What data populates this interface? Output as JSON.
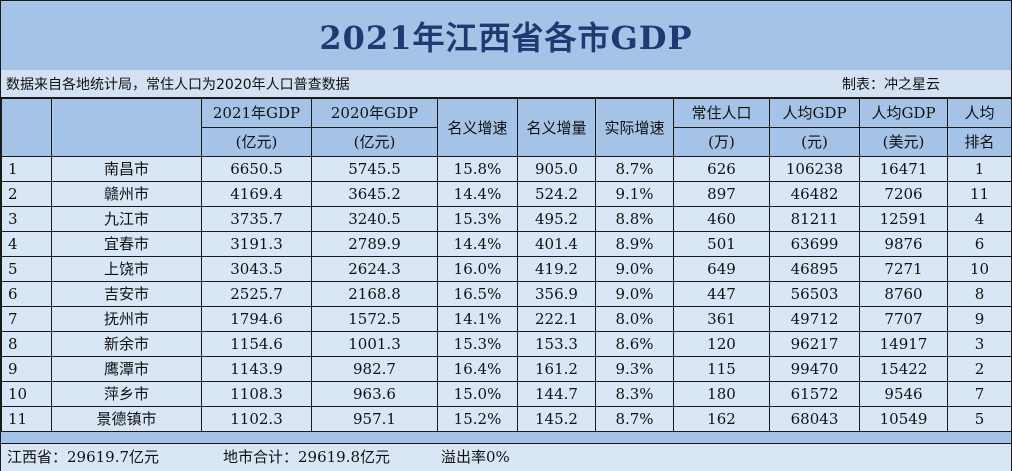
{
  "title": "2021年江西省各市GDP",
  "source_note": "数据来自各地统计局，常住人口为2020年人口普查数据",
  "credit": "制表：冲之星云",
  "headers": {
    "gdp2021_line1": "2021年GDP",
    "gdp2021_line2": "(亿元)",
    "gdp2020_line1": "2020年GDP",
    "gdp2020_line2": "(亿元)",
    "nominal_rate": "名义增速",
    "nominal_increase": "名义增量",
    "real_rate": "实际增速",
    "population_line1": "常住人口",
    "population_line2": "(万)",
    "per_capita_cny_line1": "人均GDP",
    "per_capita_cny_line2": "(元)",
    "per_capita_usd_line1": "人均GDP",
    "per_capita_usd_line2": "(美元)",
    "per_capita_rank_line1": "人均",
    "per_capita_rank_line2": "排名"
  },
  "rows": [
    {
      "idx": "1",
      "city": "南昌市",
      "gdp2021": "6650.5",
      "gdp2020": "5745.5",
      "nominal_rate": "15.8%",
      "nominal_increase": "905.0",
      "real_rate": "8.7%",
      "population": "626",
      "per_capita_cny": "106238",
      "per_capita_usd": "16471",
      "rank": "1"
    },
    {
      "idx": "2",
      "city": "赣州市",
      "gdp2021": "4169.4",
      "gdp2020": "3645.2",
      "nominal_rate": "14.4%",
      "nominal_increase": "524.2",
      "real_rate": "9.1%",
      "population": "897",
      "per_capita_cny": "46482",
      "per_capita_usd": "7206",
      "rank": "11"
    },
    {
      "idx": "3",
      "city": "九江市",
      "gdp2021": "3735.7",
      "gdp2020": "3240.5",
      "nominal_rate": "15.3%",
      "nominal_increase": "495.2",
      "real_rate": "8.8%",
      "population": "460",
      "per_capita_cny": "81211",
      "per_capita_usd": "12591",
      "rank": "4"
    },
    {
      "idx": "4",
      "city": "宜春市",
      "gdp2021": "3191.3",
      "gdp2020": "2789.9",
      "nominal_rate": "14.4%",
      "nominal_increase": "401.4",
      "real_rate": "8.9%",
      "population": "501",
      "per_capita_cny": "63699",
      "per_capita_usd": "9876",
      "rank": "6"
    },
    {
      "idx": "5",
      "city": "上饶市",
      "gdp2021": "3043.5",
      "gdp2020": "2624.3",
      "nominal_rate": "16.0%",
      "nominal_increase": "419.2",
      "real_rate": "9.0%",
      "population": "649",
      "per_capita_cny": "46895",
      "per_capita_usd": "7271",
      "rank": "10"
    },
    {
      "idx": "6",
      "city": "吉安市",
      "gdp2021": "2525.7",
      "gdp2020": "2168.8",
      "nominal_rate": "16.5%",
      "nominal_increase": "356.9",
      "real_rate": "9.0%",
      "population": "447",
      "per_capita_cny": "56503",
      "per_capita_usd": "8760",
      "rank": "8"
    },
    {
      "idx": "7",
      "city": "抚州市",
      "gdp2021": "1794.6",
      "gdp2020": "1572.5",
      "nominal_rate": "14.1%",
      "nominal_increase": "222.1",
      "real_rate": "8.0%",
      "population": "361",
      "per_capita_cny": "49712",
      "per_capita_usd": "7707",
      "rank": "9"
    },
    {
      "idx": "8",
      "city": "新余市",
      "gdp2021": "1154.6",
      "gdp2020": "1001.3",
      "nominal_rate": "15.3%",
      "nominal_increase": "153.3",
      "real_rate": "8.6%",
      "population": "120",
      "per_capita_cny": "96217",
      "per_capita_usd": "14917",
      "rank": "3"
    },
    {
      "idx": "9",
      "city": "鹰潭市",
      "gdp2021": "1143.9",
      "gdp2020": "982.7",
      "nominal_rate": "16.4%",
      "nominal_increase": "161.2",
      "real_rate": "9.3%",
      "population": "115",
      "per_capita_cny": "99470",
      "per_capita_usd": "15422",
      "rank": "2"
    },
    {
      "idx": "10",
      "city": "萍乡市",
      "gdp2021": "1108.3",
      "gdp2020": "963.6",
      "nominal_rate": "15.0%",
      "nominal_increase": "144.7",
      "real_rate": "8.3%",
      "population": "180",
      "per_capita_cny": "61572",
      "per_capita_usd": "9546",
      "rank": "7"
    },
    {
      "idx": "11",
      "city": "景德镇市",
      "gdp2021": "1102.3",
      "gdp2020": "957.1",
      "nominal_rate": "15.2%",
      "nominal_increase": "145.2",
      "real_rate": "8.7%",
      "population": "162",
      "per_capita_cny": "68043",
      "per_capita_usd": "10549",
      "rank": "5"
    }
  ],
  "footer": {
    "province_total": "江西省：29619.7亿元",
    "city_sum": "地市合计：29619.8亿元",
    "overflow_rate": "溢出率0%"
  }
}
